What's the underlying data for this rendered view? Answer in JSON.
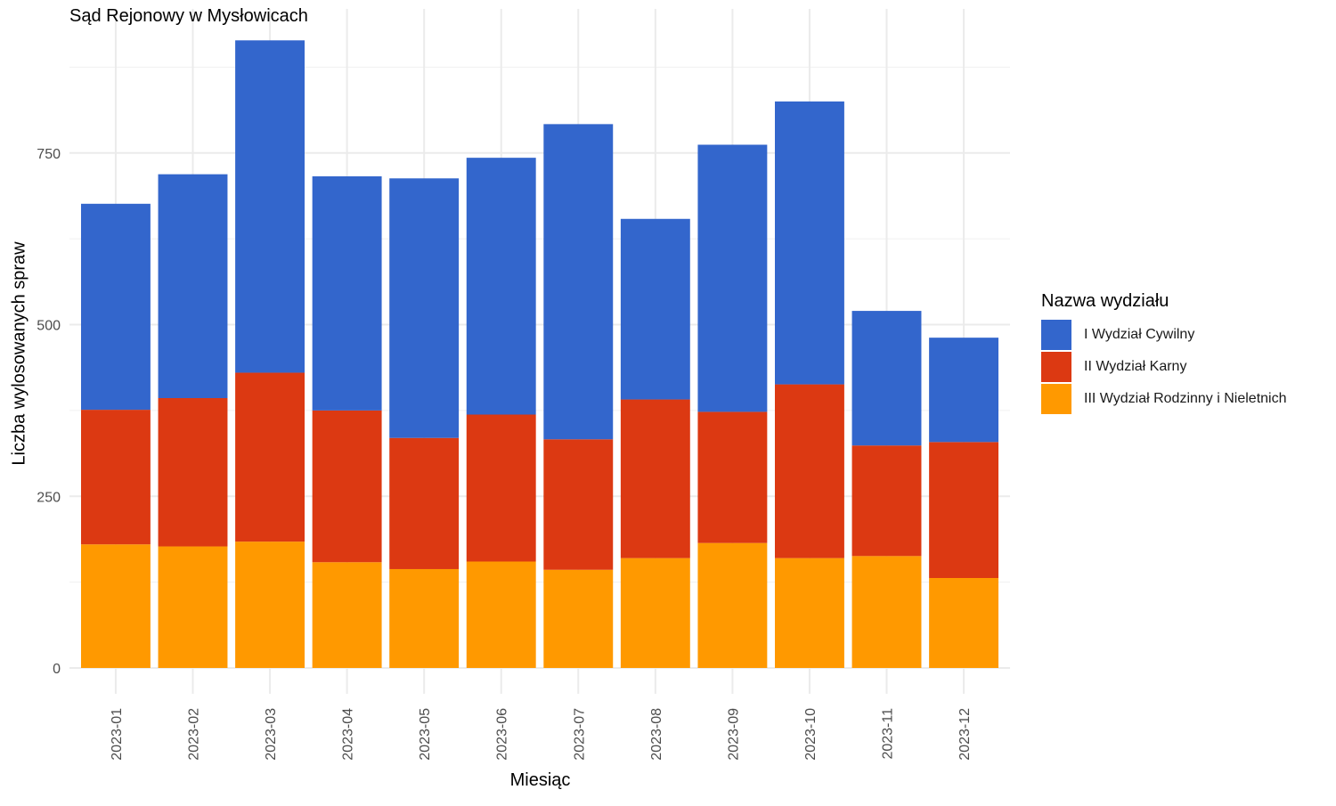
{
  "chart_data": {
    "type": "bar",
    "stacked": true,
    "title": "Sąd Rejonowy w Mysłowicach",
    "xlabel": "Miesiąc",
    "ylabel": "Liczba wylosowanych spraw",
    "ylim": [
      0,
      958
    ],
    "yticks": [
      0,
      250,
      500,
      750
    ],
    "grid": true,
    "legend_title": "Nazwa wydziału",
    "legend_position": "right",
    "categories": [
      "2023-01",
      "2023-02",
      "2023-03",
      "2023-04",
      "2023-05",
      "2023-06",
      "2023-07",
      "2023-08",
      "2023-09",
      "2023-10",
      "2023-11",
      "2023-12"
    ],
    "series": [
      {
        "name": "III Wydział Rodzinny i Nieletnich",
        "color": "#ff9900",
        "values": [
          180,
          177,
          184,
          154,
          144,
          155,
          143,
          160,
          182,
          160,
          163,
          131
        ]
      },
      {
        "name": "II Wydział Karny",
        "color": "#dc3912",
        "values": [
          196,
          216,
          246,
          221,
          191,
          214,
          190,
          231,
          191,
          253,
          161,
          198
        ]
      },
      {
        "name": "I Wydział Cywilny",
        "color": "#3366cc",
        "values": [
          300,
          326,
          484,
          341,
          378,
          374,
          459,
          263,
          389,
          412,
          196,
          152
        ]
      }
    ]
  }
}
